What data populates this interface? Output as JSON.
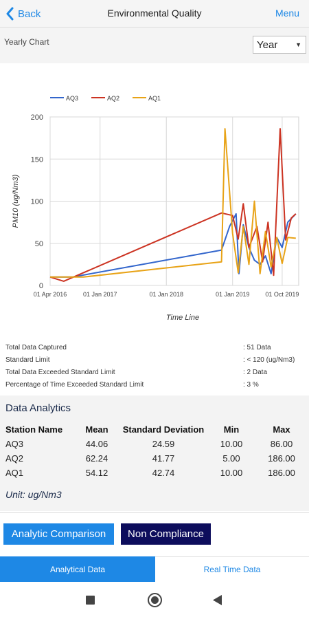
{
  "header": {
    "back_label": "Back",
    "title": "Environmental Quality",
    "menu_label": "Menu"
  },
  "chart_section": {
    "label": "Yearly Chart",
    "period_select": "Year"
  },
  "chart_data": {
    "type": "line",
    "title": "",
    "xlabel": "Time Line",
    "ylabel": "PM10 (ug/Nm3)",
    "ylim": [
      0,
      200
    ],
    "yticks": [
      0,
      50,
      100,
      150,
      200
    ],
    "xlim": [
      "2016-04-01",
      "2019-12-31"
    ],
    "xticks": [
      {
        "date": "2016-04-01",
        "label": "01 Apr 2016"
      },
      {
        "date": "2017-01-01",
        "label": "01 Jan 2017"
      },
      {
        "date": "2018-01-01",
        "label": "01 Jan 2018"
      },
      {
        "date": "2019-01-01",
        "label": "01 Jan 2019"
      },
      {
        "date": "2019-10-01",
        "label": "01 Oct 2019"
      }
    ],
    "grid": true,
    "legend_position": "top-left",
    "series": [
      {
        "name": "AQ3",
        "color": "#3366cc",
        "points": [
          [
            "2016-04-01",
            10
          ],
          [
            "2016-08-01",
            10
          ],
          [
            "2018-11-01",
            42
          ],
          [
            "2018-12-15",
            70
          ],
          [
            "2019-01-20",
            85
          ],
          [
            "2019-02-05",
            14
          ],
          [
            "2019-03-01",
            72
          ],
          [
            "2019-04-01",
            45
          ],
          [
            "2019-05-01",
            30
          ],
          [
            "2019-06-01",
            25
          ],
          [
            "2019-07-01",
            35
          ],
          [
            "2019-08-01",
            14
          ],
          [
            "2019-09-01",
            57
          ],
          [
            "2019-10-01",
            45
          ],
          [
            "2019-11-01",
            75
          ],
          [
            "2019-12-15",
            85
          ]
        ]
      },
      {
        "name": "AQ2",
        "color": "#cc3322",
        "points": [
          [
            "2016-04-01",
            10
          ],
          [
            "2016-06-15",
            5
          ],
          [
            "2016-10-01",
            15
          ],
          [
            "2018-11-01",
            86
          ],
          [
            "2019-01-01",
            83
          ],
          [
            "2019-02-01",
            55
          ],
          [
            "2019-03-01",
            97
          ],
          [
            "2019-04-01",
            45
          ],
          [
            "2019-05-15",
            70
          ],
          [
            "2019-06-15",
            28
          ],
          [
            "2019-07-15",
            75
          ],
          [
            "2019-08-15",
            12
          ],
          [
            "2019-09-20",
            186
          ],
          [
            "2019-10-20",
            54
          ],
          [
            "2019-11-20",
            80
          ],
          [
            "2019-12-15",
            85
          ]
        ]
      },
      {
        "name": "AQ1",
        "color": "#e8a317",
        "points": [
          [
            "2016-04-01",
            10
          ],
          [
            "2016-10-01",
            10
          ],
          [
            "2018-11-01",
            28
          ],
          [
            "2018-11-20",
            186
          ],
          [
            "2019-01-01",
            62
          ],
          [
            "2019-02-01",
            15
          ],
          [
            "2019-03-01",
            70
          ],
          [
            "2019-04-01",
            25
          ],
          [
            "2019-05-01",
            100
          ],
          [
            "2019-06-01",
            14
          ],
          [
            "2019-07-01",
            64
          ],
          [
            "2019-08-01",
            22
          ],
          [
            "2019-09-01",
            57
          ],
          [
            "2019-10-01",
            26
          ],
          [
            "2019-11-01",
            57
          ],
          [
            "2019-12-15",
            56
          ]
        ]
      }
    ]
  },
  "stats": {
    "total_captured": {
      "label": "Total Data Captured",
      "value": ": 51 Data"
    },
    "standard_limit": {
      "label": "Standard Limit",
      "value": ": < 120 (ug/Nm3)"
    },
    "total_exceeded": {
      "label": "Total Data Exceeded Standard Limit",
      "value": ": 2 Data"
    },
    "percentage_exceeded": {
      "label": "Percentage of Time Exceeded Standard Limit",
      "value": ": 3 %"
    }
  },
  "analytics": {
    "heading": "Data Analytics",
    "columns": [
      "Station Name",
      "Mean",
      "Standard Deviation",
      "Min",
      "Max"
    ],
    "rows": [
      [
        "AQ3",
        "44.06",
        "24.59",
        "10.00",
        "86.00"
      ],
      [
        "AQ2",
        "62.24",
        "41.77",
        "5.00",
        "186.00"
      ],
      [
        "AQ1",
        "54.12",
        "42.74",
        "10.00",
        "186.00"
      ]
    ],
    "unit": "Unit: ug/Nm3"
  },
  "buttons": {
    "analytic_comparison": "Analytic Comparison",
    "non_compliance": "Non Compliance"
  },
  "tabs": {
    "analytical": "Analytical Data",
    "realtime": "Real Time Data"
  },
  "colors": {
    "accent": "#1e88e5",
    "dark_button": "#0d0d5c"
  }
}
